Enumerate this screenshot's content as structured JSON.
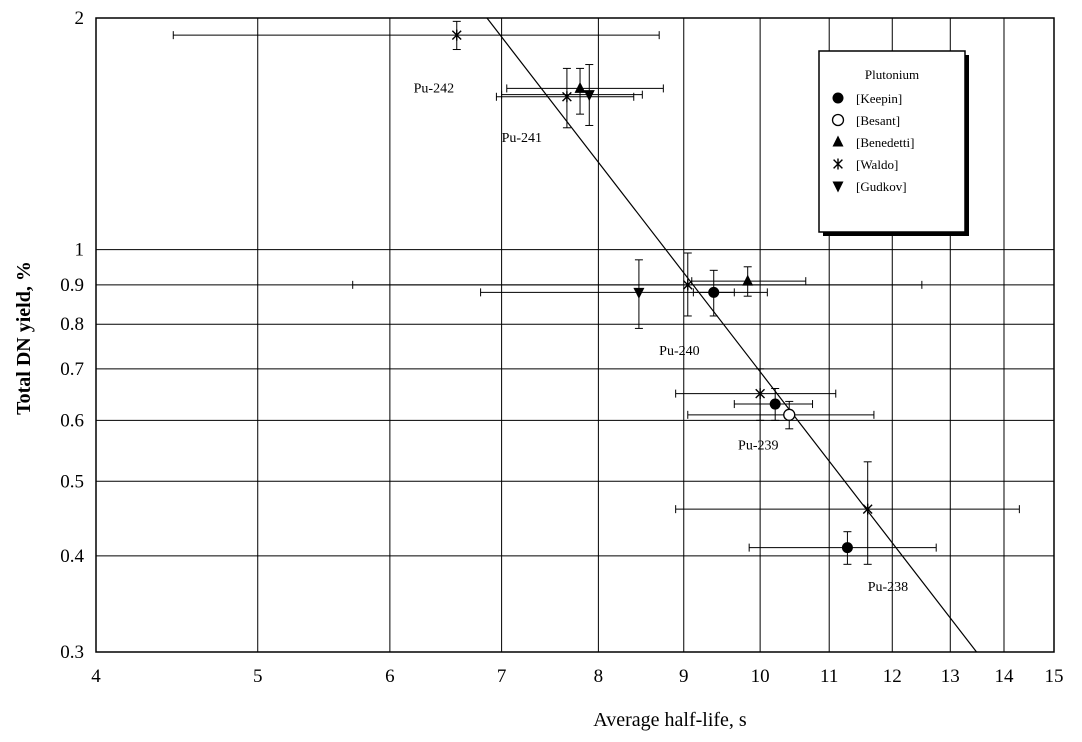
{
  "chart_data": {
    "type": "scatter",
    "xlabel": "Average half-life, s",
    "ylabel": "Total DN yield, %",
    "x_scale": "log",
    "y_scale": "log",
    "xlim": [
      4,
      15
    ],
    "ylim": [
      0.3,
      2
    ],
    "x_ticks": [
      4,
      5,
      6,
      7,
      8,
      9,
      10,
      11,
      12,
      13,
      14,
      15
    ],
    "y_ticks": [
      0.3,
      0.4,
      0.5,
      0.6,
      0.7,
      0.8,
      0.9,
      1,
      2
    ],
    "grid": true,
    "legend": {
      "title": "Plutonium",
      "placement": "top-right"
    },
    "series": [
      {
        "name": "[Keepin]",
        "marker": "circle-filled",
        "points": [
          {
            "x": 9.38,
            "y": 0.88,
            "xerr": [
              9.12,
              9.65
            ],
            "yerr": [
              0.82,
              0.94
            ]
          },
          {
            "x": 10.21,
            "y": 0.63,
            "xerr": [
              9.65,
              10.75
            ],
            "yerr": [
              0.6,
              0.66
            ]
          },
          {
            "x": 11.28,
            "y": 0.41,
            "xerr": [
              9.85,
              12.75
            ],
            "yerr": [
              0.39,
              0.43
            ]
          }
        ]
      },
      {
        "name": "[Besant]",
        "marker": "circle-open",
        "points": [
          {
            "x": 10.41,
            "y": 0.61,
            "xerr": [
              9.05,
              11.7
            ],
            "yerr": [
              0.585,
              0.635
            ]
          }
        ]
      },
      {
        "name": "[Benedetti]",
        "marker": "triangle-up",
        "points": [
          {
            "x": 7.8,
            "y": 1.62,
            "xerr": [
              7.05,
              8.75
            ],
            "yerr": [
              1.5,
              1.72
            ]
          },
          {
            "x": 9.83,
            "y": 0.91,
            "xerr": [
              9.1,
              10.65
            ],
            "yerr": [
              0.87,
              0.95
            ]
          }
        ]
      },
      {
        "name": "[Waldo]",
        "marker": "asterisk",
        "points": [
          {
            "x": 6.58,
            "y": 1.9,
            "xerr": [
              4.45,
              8.7
            ],
            "yerr": [
              1.82,
              1.98
            ]
          },
          {
            "x": 7.66,
            "y": 1.58,
            "xerr": [
              6.95,
              8.4
            ],
            "yerr": [
              1.44,
              1.72
            ]
          },
          {
            "x": 9.05,
            "y": 0.9,
            "xerr": [
              5.7,
              12.5
            ],
            "yerr": [
              0.82,
              0.99
            ]
          },
          {
            "x": 10.0,
            "y": 0.65,
            "xerr": [
              8.9,
              11.1
            ],
            "yerr": [
              0.6,
              0.7
            ]
          },
          {
            "x": 11.6,
            "y": 0.46,
            "xerr": [
              8.9,
              14.3
            ],
            "yerr": [
              0.39,
              0.53
            ]
          }
        ]
      },
      {
        "name": "[Gudkov]",
        "marker": "triangle-down",
        "points": [
          {
            "x": 7.9,
            "y": 1.59,
            "xerr": [
              7.0,
              8.5
            ],
            "yerr": [
              1.45,
              1.74
            ]
          },
          {
            "x": 8.46,
            "y": 0.88,
            "xerr": [
              6.8,
              10.1
            ],
            "yerr": [
              0.79,
              0.97
            ]
          }
        ]
      }
    ],
    "fit_line": {
      "x": [
        6.86,
        13.48
      ],
      "y": [
        2,
        0.3
      ]
    },
    "annotations": [
      {
        "text": "Pu-242",
        "x": 6.2,
        "y": 1.6
      },
      {
        "text": "Pu-241",
        "x": 7.0,
        "y": 1.38
      },
      {
        "text": "Pu-240",
        "x": 8.7,
        "y": 0.73
      },
      {
        "text": "Pu-239",
        "x": 9.7,
        "y": 0.55
      },
      {
        "text": "Pu-238",
        "x": 11.6,
        "y": 0.36
      }
    ]
  }
}
